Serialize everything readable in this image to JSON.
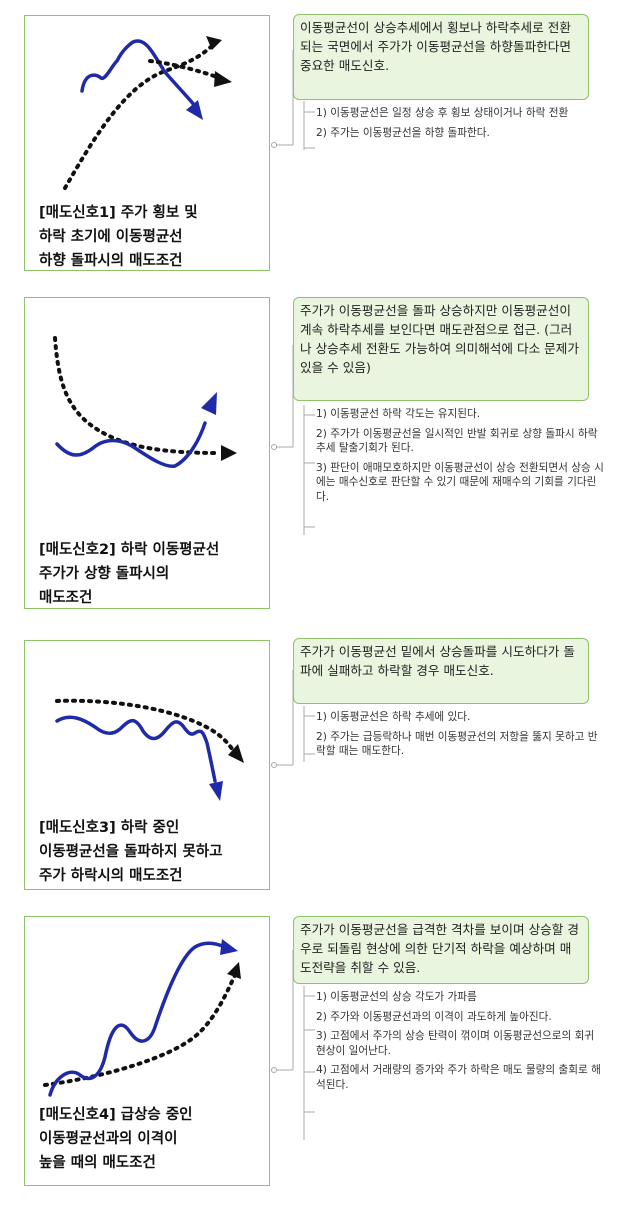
{
  "signals": [
    {
      "title": "[매도신호1]  주가 횡보 및\n하락 초기에 이동평균선\n하향 돌파시의 매도조건",
      "summary": "이동평균선이 상승추세에서 횡보나 하락추세로 전환되는 국면에서 주가가 이동평균선을 하향돌파한다면 중요한 매도신호.",
      "items": [
        "1) 이동평균선은 일정 상승 후 횡보 상태이거나 하락 전환",
        "2) 주가는 이동평균선을 하향 돌파한다."
      ]
    },
    {
      "title": "[매도신호2]  하락 이동평균선\n주가가 상향 돌파시의\n매도조건",
      "summary": "주가가 이동평균선을 돌파 상승하지만 이동평균선이 계속 하락추세를 보인다면 매도관점으로 접근. (그러나 상승추세 전환도 가능하여 의미해석에 다소 문제가 있을 수 있음)",
      "items": [
        "1) 이동평균선 하락 각도는 유지된다.",
        "2) 주가가 이동평균선을 일시적인 반발 회귀로 상향 돌파시 하락 추세 탈출기회가 된다.",
        "3) 판단이 애매모호하지만 이동평균선이 상승 전환되면서 상승 시에는 매수신호로 판단할 수 있기 때문에 재매수의 기회를 기다린다."
      ]
    },
    {
      "title": "[매도신호3] 하락 중인\n이동평균선을 돌파하지 못하고\n주가 하락시의 매도조건",
      "summary": "주가가 이동평균선 밑에서 상승돌파를 시도하다가 돌파에 실패하고 하락할 경우 매도신호.",
      "items": [
        "1) 이동평균선은 하락 추세에 있다.",
        "2) 주가는 급등락하나 매번 이동평균선의 저항을 뚫지 못하고 반락할 때는 매도한다."
      ]
    },
    {
      "title": "[매도신호4] 급상승 중인\n이동평균선과의 이격이\n높을 때의 매도조건",
      "summary": "주가가 이동평균선을 급격한 격차를 보이며 상승할 경우로 되돌림 현상에 의한 단기적 하락을 예상하며 매도전략을 취할 수 있음.",
      "items": [
        "1) 이동평균선의 상승 각도가 가파름",
        "2) 주가와 이동평균선과의 이격이 과도하게 높아진다.",
        "3) 고점에서 주가의 상승 탄력이 꺾이며 이동평균선으로의 회귀 현상이 일어난다.",
        "4) 고점에서 거래량의 증가와 주가 하락은 매도 물량의 출회로 해석된다."
      ]
    }
  ],
  "colors": {
    "border": "#8dc36a",
    "box_fill": "#e9f5df",
    "price_line": "#1f2aa8",
    "ma_line": "#111111",
    "connector": "#a9a9a9"
  }
}
